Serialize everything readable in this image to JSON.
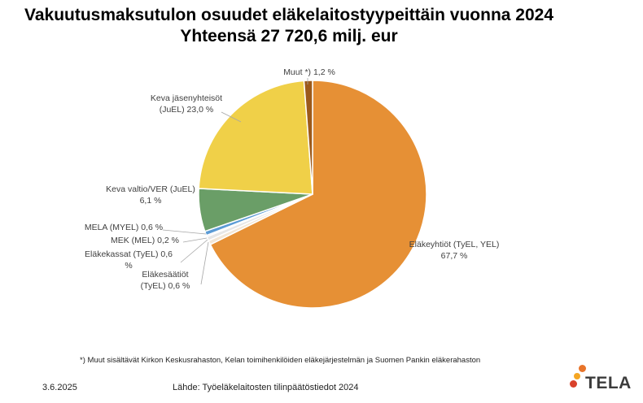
{
  "chart_data": {
    "type": "pie",
    "title": "Vakuutusmaksutulon osuudet eläkelaitostyypeittäin vuonna 2024",
    "subtitle": "Yhteensä 27 720,6 milj. eur",
    "unit": "%",
    "slices": [
      {
        "label": "Eläkeyhtiöt (TyEL, YEL)",
        "label_lines": [
          "Eläkeyhtiöt (TyEL, YEL)",
          "67,7 %"
        ],
        "value": 67.7,
        "color": "#E69035"
      },
      {
        "label": "Eläkesäätiöt (TyEL)",
        "label_lines": [
          "Eläkesäätiöt",
          "(TyEL) 0,6 %"
        ],
        "value": 0.6,
        "color": "#F2E6D6"
      },
      {
        "label": "Eläkekassat (TyEL)",
        "label_lines": [
          "Eläkekassat (TyEL) 0,6",
          "%"
        ],
        "value": 0.6,
        "color": "#E6E6E6"
      },
      {
        "label": "MEK (MEL)",
        "label_lines": [
          "MEK (MEL) 0,2 %"
        ],
        "value": 0.2,
        "color": "#C9B8DA"
      },
      {
        "label": "MELA (MYEL)",
        "label_lines": [
          "MELA (MYEL) 0,6 %"
        ],
        "value": 0.6,
        "color": "#5B9BD5"
      },
      {
        "label": "Keva valtio/VER (JuEL)",
        "label_lines": [
          "Keva valtio/VER (JuEL)",
          "6,1 %"
        ],
        "value": 6.1,
        "color": "#6A9E67"
      },
      {
        "label": "Keva jäsenyhteisöt (JuEL)",
        "label_lines": [
          "Keva jäsenyhteisöt",
          "(JuEL) 23,0 %"
        ],
        "value": 23.0,
        "color": "#F0D048"
      },
      {
        "label": "Muut *)",
        "label_lines": [
          "Muut *) 1,2 %"
        ],
        "value": 1.2,
        "color": "#9C5A1B"
      }
    ]
  },
  "footnote": "*) Muut sisältävät  Kirkon Keskusrahaston, Kelan toimihenkilöiden eläkejärjestelmän ja Suomen Pankin eläkerahaston",
  "date": "3.6.2025",
  "source": "Lähde: Työeläkelaitosten tilinpäätöstiedot 2024",
  "logo": {
    "text": "TELA",
    "colors": [
      "#E8742A",
      "#F5A623",
      "#D9412B"
    ]
  }
}
